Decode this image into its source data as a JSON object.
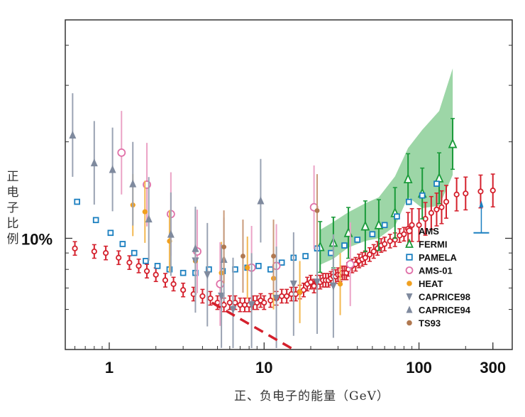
{
  "chart_data": {
    "type": "scatter",
    "title": "",
    "xlabel": "正、负电子的能量（GeV）",
    "ylabel": "正电子比例",
    "x_scale": "log",
    "y_scale": "log",
    "xlim": [
      0.52,
      400
    ],
    "ylim": [
      0.045,
      0.48
    ],
    "x_tick_labels": [
      "1",
      "10",
      "100",
      "300"
    ],
    "x_tick_values": [
      1,
      10,
      100,
      300
    ],
    "y_tick_labels": [
      "10%"
    ],
    "y_tick_values": [
      0.1
    ],
    "grid": false,
    "legend_placement": "lower-right",
    "series": [
      {
        "name": "AMS",
        "color": "#d4202c",
        "marker": "circle-open",
        "x": [
          0.6,
          0.8,
          0.95,
          1.15,
          1.35,
          1.55,
          1.75,
          2.0,
          2.3,
          2.6,
          3.0,
          3.5,
          4.0,
          4.5,
          5.0,
          5.5,
          6.0,
          6.5,
          7.0,
          7.5,
          8.0,
          8.5,
          9.0,
          9.5,
          10,
          11,
          12,
          13,
          14,
          15,
          16,
          17,
          18,
          19,
          20,
          21,
          22,
          23,
          24,
          25,
          26,
          27,
          28,
          29,
          30,
          31,
          32,
          33,
          34,
          35,
          37,
          39,
          41,
          43,
          45,
          48,
          51,
          54,
          57,
          60,
          65,
          70,
          75,
          80,
          85,
          90,
          100,
          110,
          120,
          130,
          140,
          150,
          175,
          200,
          250,
          300
        ],
        "y": [
          0.093,
          0.091,
          0.09,
          0.087,
          0.084,
          0.082,
          0.079,
          0.077,
          0.074,
          0.072,
          0.069,
          0.067,
          0.066,
          0.065,
          0.063,
          0.062,
          0.063,
          0.063,
          0.062,
          0.062,
          0.062,
          0.063,
          0.063,
          0.064,
          0.063,
          0.064,
          0.065,
          0.066,
          0.066,
          0.067,
          0.067,
          0.068,
          0.069,
          0.072,
          0.073,
          0.071,
          0.073,
          0.073,
          0.074,
          0.074,
          0.074,
          0.075,
          0.076,
          0.076,
          0.077,
          0.077,
          0.078,
          0.078,
          0.078,
          0.08,
          0.082,
          0.083,
          0.085,
          0.086,
          0.087,
          0.089,
          0.091,
          0.093,
          0.095,
          0.096,
          0.098,
          0.099,
          0.102,
          0.103,
          0.107,
          0.11,
          0.11,
          0.115,
          0.12,
          0.123,
          0.125,
          0.13,
          0.137,
          0.138,
          0.14,
          0.141
        ]
      },
      {
        "name": "FERMI",
        "color": "#1a9a3a",
        "marker": "triangle-open",
        "x": [
          23,
          28,
          35,
          45,
          55,
          70,
          85,
          105,
          135,
          165
        ],
        "y": [
          0.094,
          0.097,
          0.104,
          0.109,
          0.11,
          0.12,
          0.153,
          0.138,
          0.154,
          0.197
        ]
      },
      {
        "name": "PAMELA",
        "color": "#1a7fc0",
        "marker": "square-open",
        "x": [
          0.62,
          0.82,
          1.02,
          1.22,
          1.45,
          1.72,
          2.05,
          2.45,
          3.0,
          3.6,
          4.4,
          5.4,
          6.5,
          7.8,
          9.2,
          11,
          13,
          15.5,
          18.5,
          22,
          27,
          33,
          40,
          50,
          60,
          72,
          86,
          105,
          130
        ],
        "y": [
          0.13,
          0.114,
          0.104,
          0.096,
          0.09,
          0.085,
          0.082,
          0.08,
          0.078,
          0.078,
          0.08,
          0.079,
          0.08,
          0.081,
          0.082,
          0.08,
          0.084,
          0.087,
          0.088,
          0.093,
          0.09,
          0.095,
          0.099,
          0.103,
          0.11,
          0.117,
          0.13,
          0.136,
          0.148
        ]
      },
      {
        "name": "AMS-01",
        "color": "#e070a8",
        "marker": "circle-open",
        "x": [
          1.2,
          1.75,
          2.5,
          3.7,
          5.2,
          8.3,
          12,
          21,
          36
        ],
        "y": [
          0.185,
          0.147,
          0.119,
          0.091,
          0.072,
          0.081,
          0.082,
          0.125,
          0.083
        ]
      },
      {
        "name": "HEAT",
        "color": "#f0a020",
        "marker": "circle-filled",
        "x": [
          1.42,
          1.7,
          2.45,
          3.6,
          5.3,
          7.8,
          11.5,
          17,
          31
        ],
        "y": [
          0.127,
          0.121,
          0.098,
          0.085,
          0.078,
          0.081,
          0.075,
          0.068,
          0.072
        ]
      },
      {
        "name": "CAPRICE98",
        "color": "#7f8a9e",
        "marker": "triangle-down",
        "x": [
          3.6,
          4.3,
          5.3,
          6.3,
          8.3,
          12,
          15.5,
          22,
          28
        ],
        "y": [
          0.085,
          0.077,
          0.066,
          0.06,
          0.062,
          0.065,
          0.072,
          0.073,
          0.071
        ]
      },
      {
        "name": "CAPRICE94",
        "color": "#7f8a9e",
        "marker": "triangle-up",
        "x": [
          0.58,
          0.8,
          1.05,
          1.42,
          1.8,
          2.5,
          3.6,
          5.5,
          9.5
        ],
        "y": [
          0.21,
          0.172,
          0.164,
          0.148,
          0.115,
          0.103,
          0.093,
          0.086,
          0.131
        ]
      },
      {
        "name": "TS93",
        "color": "#b07850",
        "marker": "circle-filled",
        "x": [
          5.5,
          7.3,
          11.5,
          22
        ],
        "y": [
          0.094,
          0.088,
          0.088,
          0.122
        ]
      }
    ]
  }
}
